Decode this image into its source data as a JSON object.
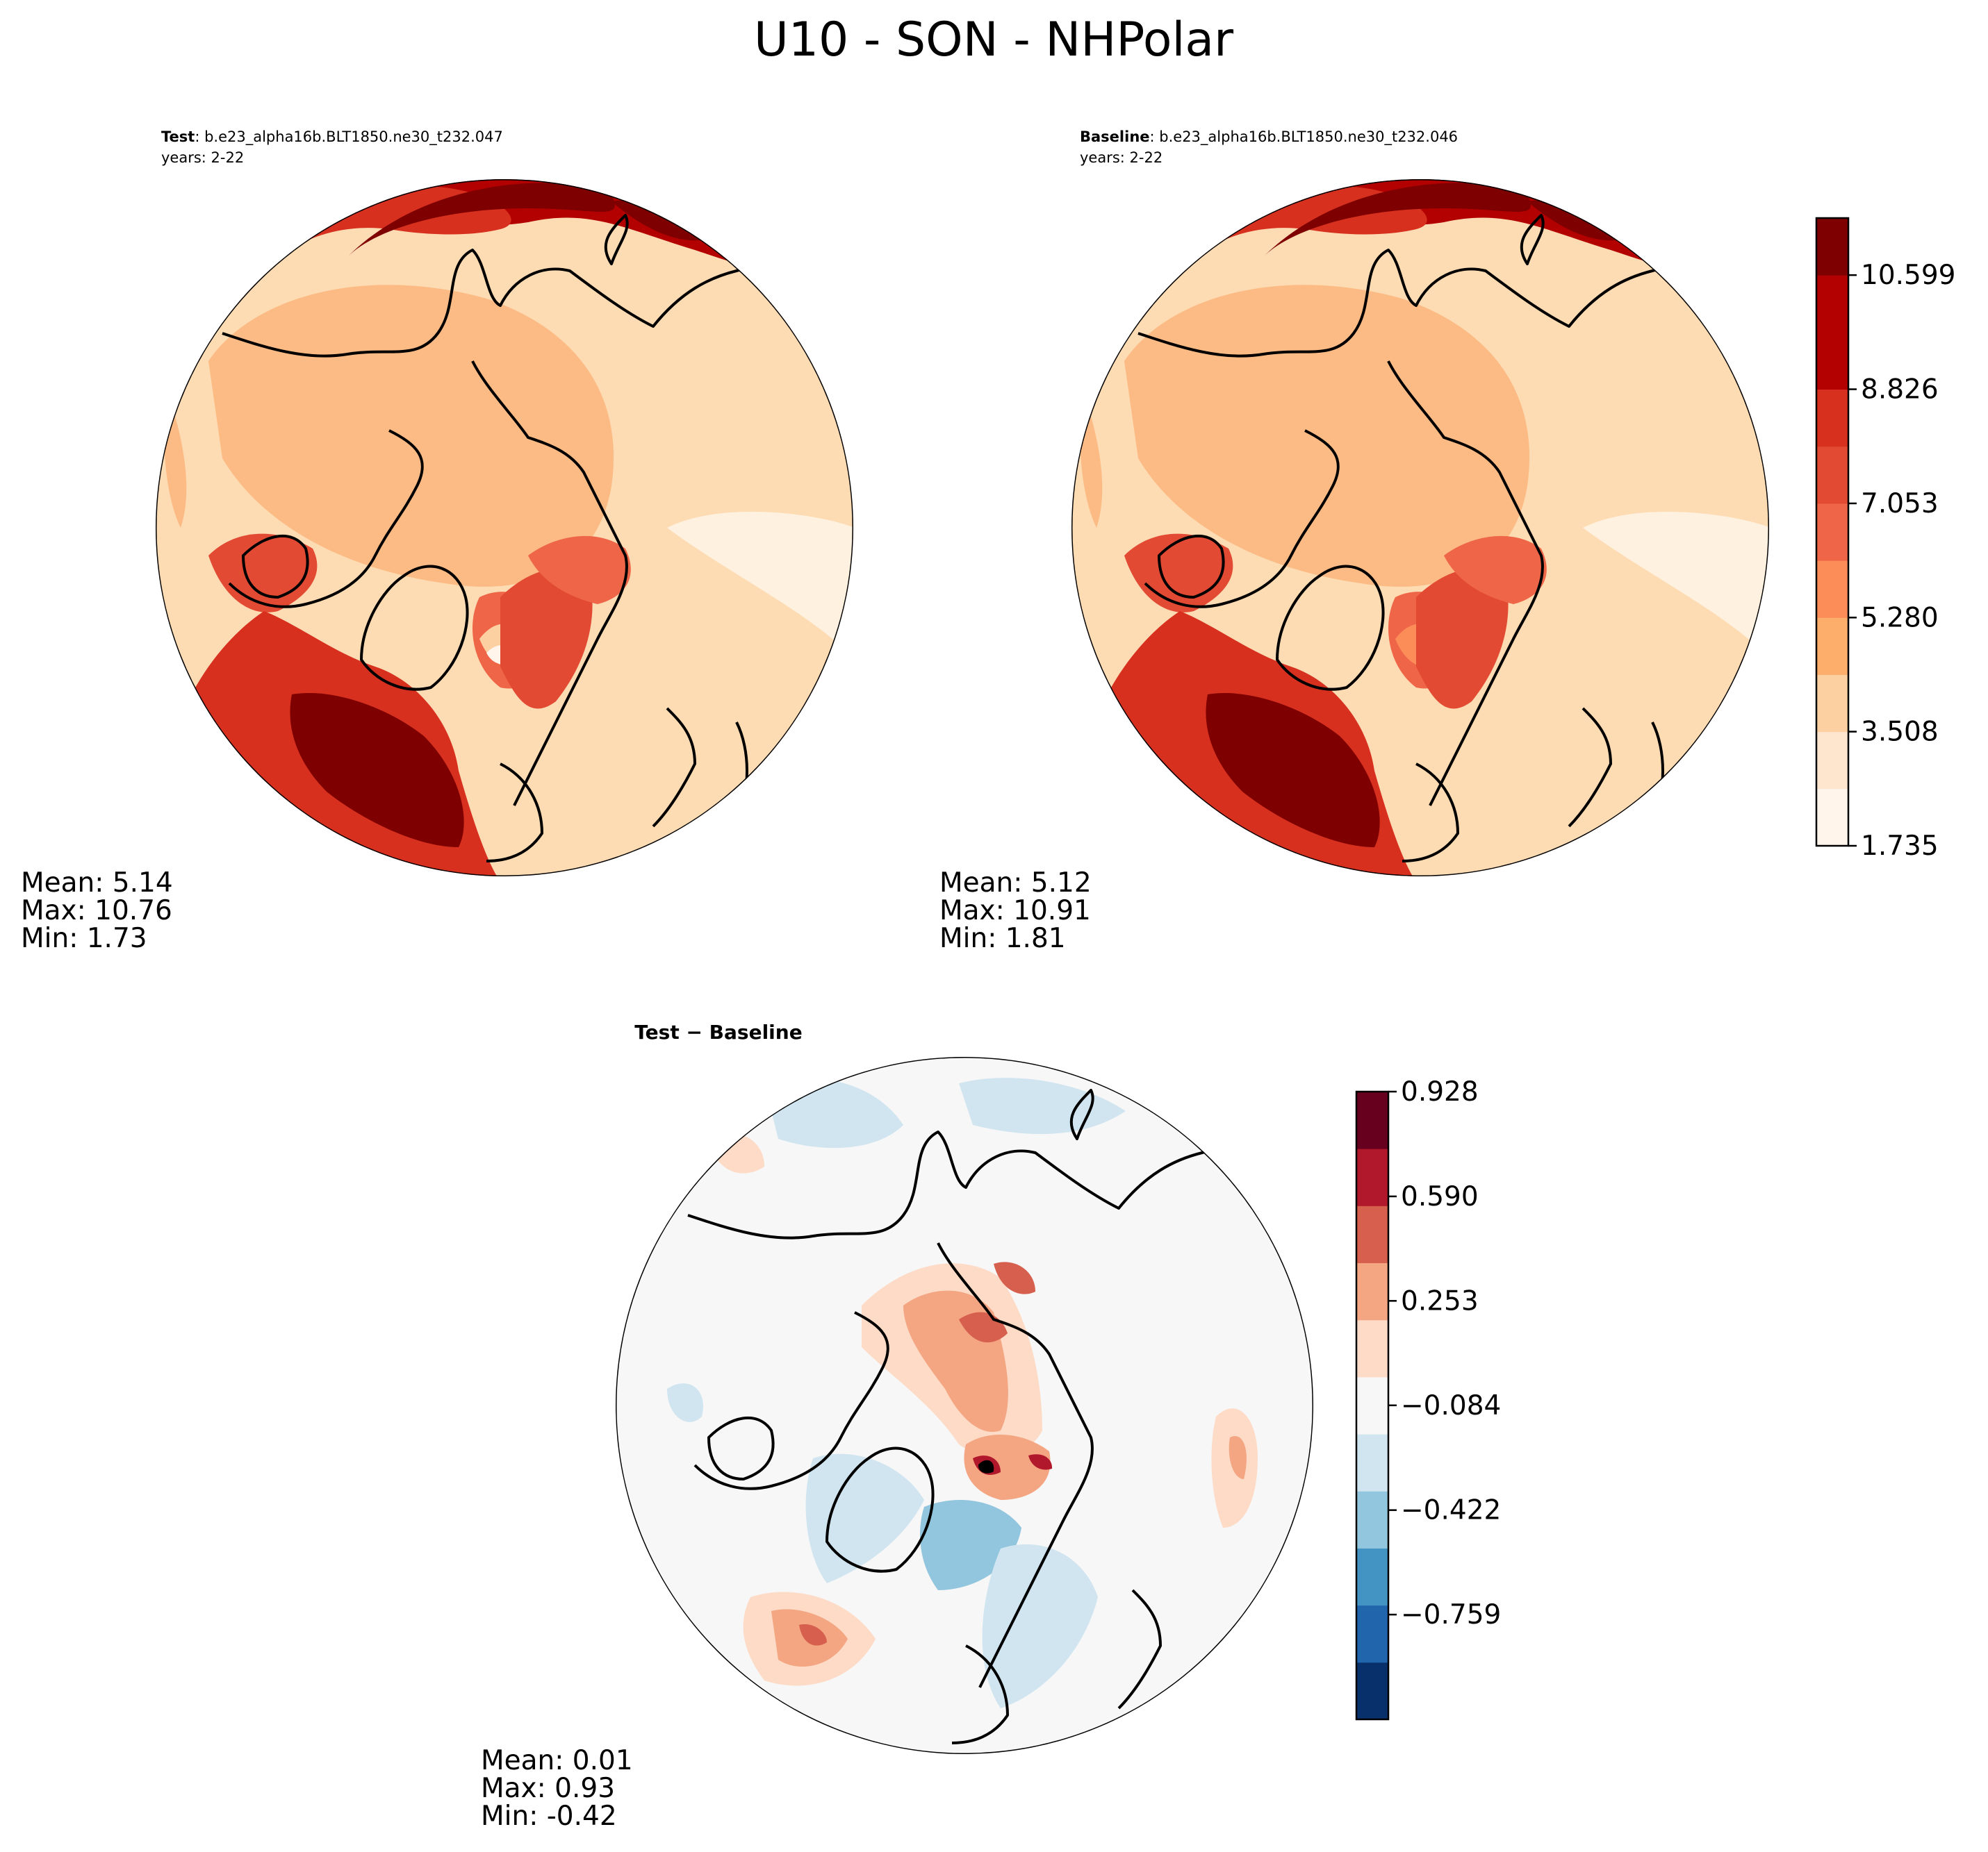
{
  "figure": {
    "title": "U10 - SON - NHPolar"
  },
  "panels": {
    "test": {
      "label": "Test",
      "case": ": b.e23_alpha16b.BLT1850.ne30_t232.047",
      "years": "years: 2-22",
      "stats": {
        "mean": "Mean:  5.14",
        "max": "Max: 10.76",
        "min": "Min:  1.73"
      }
    },
    "baseline": {
      "label": "Baseline",
      "case": ": b.e23_alpha16b.BLT1850.ne30_t232.046",
      "years": "years: 2-22",
      "stats": {
        "mean": "Mean:  5.12",
        "max": "Max: 10.91",
        "min": "Min:  1.81"
      }
    },
    "diff": {
      "title": "Test − Baseline",
      "stats": {
        "mean": "Mean:  0.01",
        "max": "Max:  0.93",
        "min": "Min: -0.42"
      }
    }
  },
  "chart_data": [
    {
      "type": "heatmap",
      "projection": "north-polar-stereographic",
      "title": "Test",
      "variable": "U10",
      "season": "SON",
      "stats": {
        "mean": 5.14,
        "max": 10.76,
        "min": 1.73
      },
      "colormap": "Reds",
      "levels": [
        1.735,
        2.621,
        3.508,
        4.394,
        5.28,
        6.167,
        7.053,
        7.94,
        8.826,
        9.712,
        10.599,
        11.485
      ]
    },
    {
      "type": "heatmap",
      "projection": "north-polar-stereographic",
      "title": "Baseline",
      "variable": "U10",
      "season": "SON",
      "stats": {
        "mean": 5.12,
        "max": 10.91,
        "min": 1.81
      },
      "colormap": "Reds",
      "levels": [
        1.735,
        2.621,
        3.508,
        4.394,
        5.28,
        6.167,
        7.053,
        7.94,
        8.826,
        9.712,
        10.599,
        11.485
      ]
    },
    {
      "type": "heatmap",
      "projection": "north-polar-stereographic",
      "title": "Test − Baseline",
      "stats": {
        "mean": 0.01,
        "max": 0.93,
        "min": -0.42
      },
      "colormap": "RdBu_r",
      "levels": [
        -1.097,
        -0.928,
        -0.759,
        -0.59,
        -0.422,
        -0.253,
        -0.084,
        0.084,
        0.253,
        0.422,
        0.59,
        0.759,
        0.928
      ]
    }
  ],
  "colorbars": {
    "main": {
      "tick_labels": [
        "1.735",
        "3.508",
        "5.280",
        "7.053",
        "8.826",
        "10.599"
      ],
      "colors": [
        "#fff5eb",
        "#fee6ce",
        "#fdd0a2",
        "#fdae6b",
        "#fc8d59",
        "#ef6548",
        "#e34a33",
        "#d7301f",
        "#b30000",
        "#b30000",
        "#7f0000"
      ]
    },
    "diff": {
      "tick_labels": [
        "−0.759",
        "−0.422",
        "−0.084",
        "0.253",
        "0.590",
        "0.928"
      ],
      "colors": [
        "#08306b",
        "#2166ac",
        "#4393c3",
        "#92c5de",
        "#d1e5f0",
        "#f7f7f7",
        "#fddbc7",
        "#f4a582",
        "#d6604d",
        "#b2182b",
        "#67001f"
      ]
    }
  }
}
